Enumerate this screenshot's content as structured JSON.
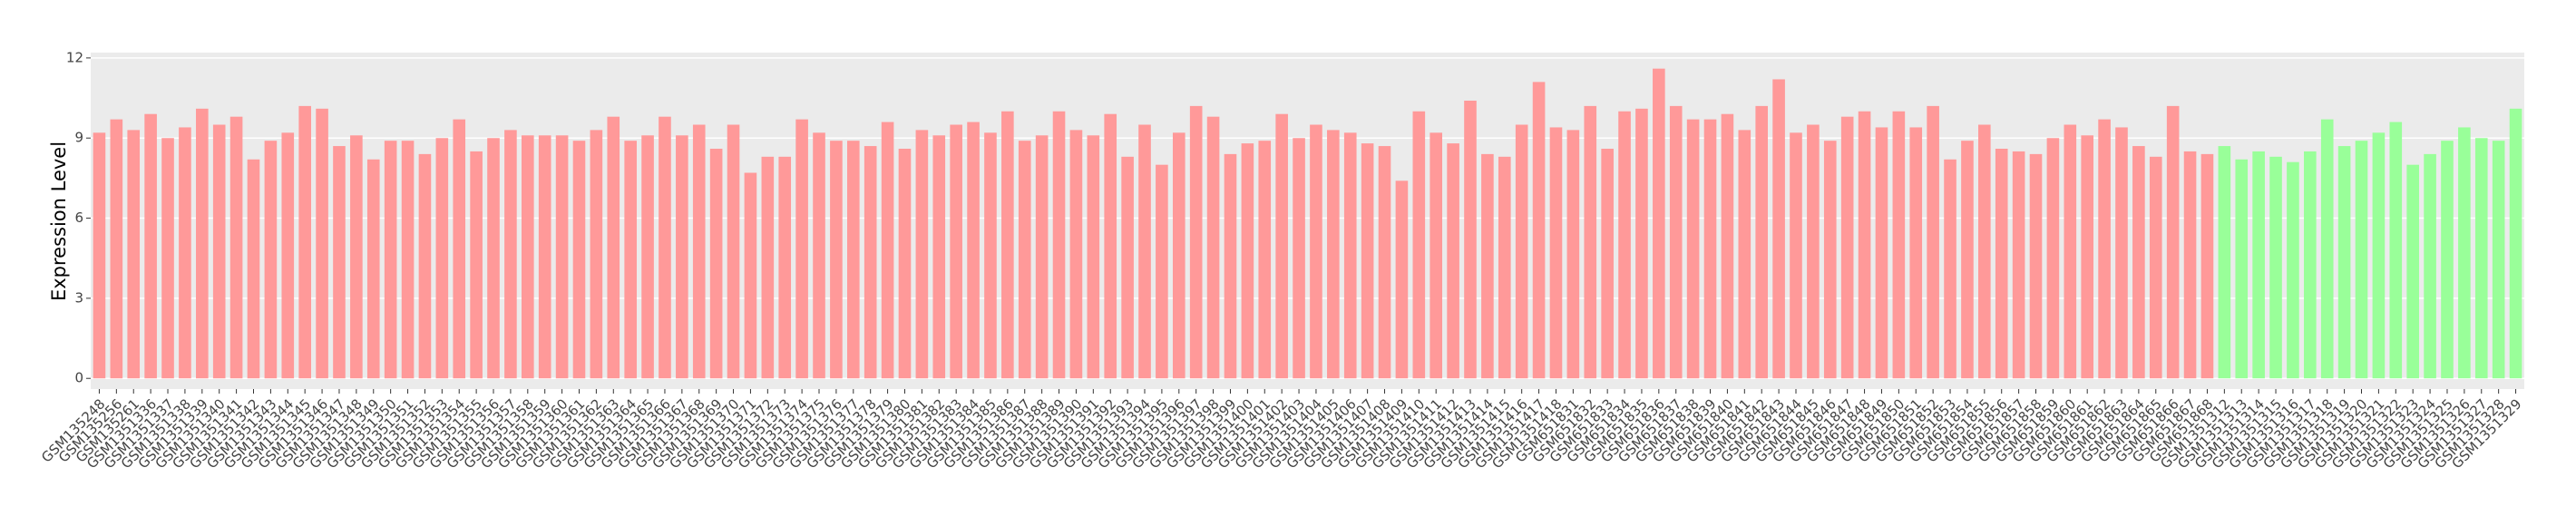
{
  "chart_data": {
    "type": "bar",
    "ylabel": "Expression Level",
    "categories": [
      "GSM135248",
      "GSM135256",
      "GSM135261",
      "GSM1351336",
      "GSM1351337",
      "GSM1351338",
      "GSM1351339",
      "GSM1351340",
      "GSM1351341",
      "GSM1351342",
      "GSM1351343",
      "GSM1351344",
      "GSM1351345",
      "GSM1351346",
      "GSM1351347",
      "GSM1351348",
      "GSM1351349",
      "GSM1351350",
      "GSM1351351",
      "GSM1351352",
      "GSM1351353",
      "GSM1351354",
      "GSM1351355",
      "GSM1351356",
      "GSM1351357",
      "GSM1351358",
      "GSM1351359",
      "GSM1351360",
      "GSM1351361",
      "GSM1351362",
      "GSM1351363",
      "GSM1351364",
      "GSM1351365",
      "GSM1351366",
      "GSM1351367",
      "GSM1351368",
      "GSM1351369",
      "GSM1351370",
      "GSM1351371",
      "GSM1351372",
      "GSM1351373",
      "GSM1351374",
      "GSM1351375",
      "GSM1351376",
      "GSM1351377",
      "GSM1351378",
      "GSM1351379",
      "GSM1351380",
      "GSM1351381",
      "GSM1351382",
      "GSM1351383",
      "GSM1351384",
      "GSM1351385",
      "GSM1351386",
      "GSM1351387",
      "GSM1351388",
      "GSM1351389",
      "GSM1351390",
      "GSM1351391",
      "GSM1351392",
      "GSM1351393",
      "GSM1351394",
      "GSM1351395",
      "GSM1351396",
      "GSM1351397",
      "GSM1351398",
      "GSM1351399",
      "GSM1351400",
      "GSM1351401",
      "GSM1351402",
      "GSM1351403",
      "GSM1351404",
      "GSM1351405",
      "GSM1351406",
      "GSM1351407",
      "GSM1351408",
      "GSM1351409",
      "GSM1351410",
      "GSM1351411",
      "GSM1351412",
      "GSM1351413",
      "GSM1351414",
      "GSM1351415",
      "GSM1351416",
      "GSM1351417",
      "GSM1351418",
      "GSM651831",
      "GSM651832",
      "GSM651833",
      "GSM651834",
      "GSM651835",
      "GSM651836",
      "GSM651837",
      "GSM651838",
      "GSM651839",
      "GSM651840",
      "GSM651841",
      "GSM651842",
      "GSM651843",
      "GSM651844",
      "GSM651845",
      "GSM651846",
      "GSM651847",
      "GSM651848",
      "GSM651849",
      "GSM651850",
      "GSM651851",
      "GSM651852",
      "GSM651853",
      "GSM651854",
      "GSM651855",
      "GSM651856",
      "GSM651857",
      "GSM651858",
      "GSM651859",
      "GSM651860",
      "GSM651861",
      "GSM651862",
      "GSM651863",
      "GSM651864",
      "GSM651865",
      "GSM651866",
      "GSM651867",
      "GSM651868",
      "GSM1351312",
      "GSM1351313",
      "GSM1351314",
      "GSM1351315",
      "GSM1351316",
      "GSM1351317",
      "GSM1351318",
      "GSM1351319",
      "GSM1351320",
      "GSM1351321",
      "GSM1351322",
      "GSM1351323",
      "GSM1351324",
      "GSM1351325",
      "GSM1351326",
      "GSM1351327",
      "GSM1351328",
      "GSM1351329"
    ],
    "series": [
      {
        "color": "#ff9999",
        "values": [
          9.2,
          9.7,
          9.3,
          9.9,
          9.0,
          9.4,
          10.1,
          9.5,
          9.8,
          8.2,
          8.9,
          9.2,
          10.2,
          10.1,
          8.7,
          9.1,
          8.2,
          8.9,
          8.9,
          8.4,
          9.0,
          9.7,
          8.5,
          9.0,
          9.3,
          9.1,
          9.1,
          9.1,
          8.9,
          9.3,
          9.8,
          8.9,
          9.1,
          9.8,
          9.1,
          9.5,
          8.6,
          9.5,
          7.7,
          8.3,
          8.3,
          9.7,
          9.2,
          8.9,
          8.9,
          8.7,
          9.6,
          8.6,
          9.3,
          9.1,
          9.5,
          9.6,
          9.2,
          10.0,
          8.9,
          9.1,
          10.0,
          9.3,
          9.1,
          9.9,
          8.3,
          9.5,
          8.0,
          9.2,
          10.2,
          9.8,
          8.4,
          8.8,
          8.9,
          9.9,
          9.0,
          9.5,
          9.3,
          9.2,
          8.8,
          8.7,
          7.4,
          10.0,
          9.2,
          8.8,
          10.4,
          8.4,
          8.3,
          9.5,
          11.1,
          9.4,
          9.3,
          10.2,
          8.6,
          10.0,
          10.1,
          11.6,
          10.2,
          9.7,
          9.7,
          9.9,
          9.3,
          10.2,
          11.2,
          9.2,
          9.5,
          8.9,
          9.8,
          10.0,
          9.4,
          10.0,
          9.4,
          10.2,
          8.2,
          8.9,
          9.5,
          8.6,
          8.5,
          8.4,
          9.0,
          9.5,
          9.1,
          9.7,
          9.4,
          8.7,
          8.3,
          10.2,
          8.5,
          8.4,
          null,
          null,
          null,
          null,
          null,
          null,
          null,
          null,
          null,
          null,
          null,
          null,
          null,
          null,
          null,
          null,
          null,
          null
        ]
      },
      {
        "color": "#99ff99",
        "values": [
          null,
          null,
          null,
          null,
          null,
          null,
          null,
          null,
          null,
          null,
          null,
          null,
          null,
          null,
          null,
          null,
          null,
          null,
          null,
          null,
          null,
          null,
          null,
          null,
          null,
          null,
          null,
          null,
          null,
          null,
          null,
          null,
          null,
          null,
          null,
          null,
          null,
          null,
          null,
          null,
          null,
          null,
          null,
          null,
          null,
          null,
          null,
          null,
          null,
          null,
          null,
          null,
          null,
          null,
          null,
          null,
          null,
          null,
          null,
          null,
          null,
          null,
          null,
          null,
          null,
          null,
          null,
          null,
          null,
          null,
          null,
          null,
          null,
          null,
          null,
          null,
          null,
          null,
          null,
          null,
          null,
          null,
          null,
          null,
          null,
          null,
          null,
          null,
          null,
          null,
          null,
          null,
          null,
          null,
          null,
          null,
          null,
          null,
          null,
          null,
          null,
          null,
          null,
          null,
          null,
          null,
          null,
          null,
          null,
          null,
          null,
          null,
          null,
          null,
          null,
          null,
          null,
          null,
          null,
          null,
          null,
          null,
          null,
          null,
          8.7,
          8.2,
          8.5,
          8.3,
          8.1,
          8.5,
          9.7,
          8.7,
          8.9,
          9.2,
          9.6,
          8.0,
          8.4,
          8.9,
          9.4,
          9.0,
          8.9,
          10.1
        ]
      }
    ],
    "ylim": [
      -0.4,
      12.2
    ],
    "yticks": [
      0,
      3,
      6,
      9,
      12
    ],
    "grid": true
  }
}
